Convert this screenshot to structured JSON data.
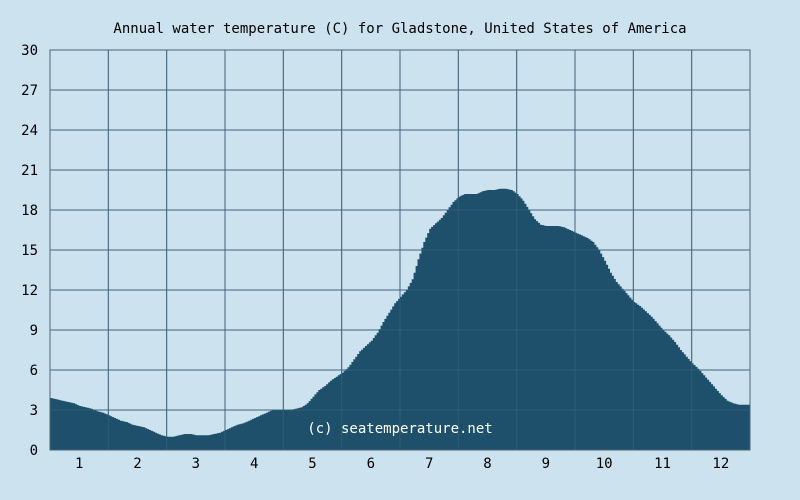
{
  "chart_data": {
    "type": "area",
    "title": "Annual water temperature (C) for Gladstone, United States of America",
    "xlabel": "",
    "ylabel": "",
    "x_ticks": [
      "1",
      "2",
      "3",
      "4",
      "5",
      "6",
      "7",
      "8",
      "9",
      "10",
      "11",
      "12"
    ],
    "xlim": [
      0.5,
      12.5
    ],
    "y_ticks": [
      "0",
      "3",
      "6",
      "9",
      "12",
      "15",
      "18",
      "21",
      "24",
      "27",
      "30"
    ],
    "ylim": [
      0,
      30
    ],
    "grid": true,
    "legend": "none",
    "watermark": "(c) seatemperature.net",
    "colors": {
      "background": "#cce2ee",
      "fill": "#1e506b",
      "grid": "#4b6478"
    },
    "series": [
      {
        "x": [
          0.5,
          0.6,
          0.7,
          0.8,
          0.9,
          1.0,
          1.1,
          1.2,
          1.3,
          1.4,
          1.5,
          1.6,
          1.7,
          1.8,
          1.9,
          2.0,
          2.1,
          2.2,
          2.3,
          2.4,
          2.5,
          2.6,
          2.7,
          2.8,
          2.9,
          3.0,
          3.1,
          3.2,
          3.3,
          3.4,
          3.5,
          3.6,
          3.7,
          3.8,
          3.9,
          4.0,
          4.1,
          4.2,
          4.3,
          4.4,
          4.5,
          4.6,
          4.7,
          4.8,
          4.9,
          5.0,
          5.1,
          5.2,
          5.3,
          5.4,
          5.5,
          5.6,
          5.7,
          5.8,
          5.9,
          6.0,
          6.1,
          6.2,
          6.3,
          6.4,
          6.5,
          6.6,
          6.7,
          6.8,
          6.9,
          7.0,
          7.1,
          7.2,
          7.3,
          7.4,
          7.5,
          7.6,
          7.7,
          7.8,
          7.9,
          8.0,
          8.1,
          8.2,
          8.3,
          8.4,
          8.5,
          8.6,
          8.7,
          8.8,
          8.9,
          9.0,
          9.1,
          9.2,
          9.3,
          9.4,
          9.5,
          9.6,
          9.7,
          9.8,
          9.9,
          10.0,
          10.1,
          10.2,
          10.3,
          10.4,
          10.5,
          10.6,
          10.7,
          10.8,
          10.9,
          11.0,
          11.1,
          11.2,
          11.3,
          11.4,
          11.5,
          11.6,
          11.7,
          11.8,
          11.9,
          12.0,
          12.1,
          12.2,
          12.3,
          12.4,
          12.5
        ],
        "values": [
          3.9,
          3.8,
          3.7,
          3.6,
          3.5,
          3.3,
          3.2,
          3.1,
          2.9,
          2.8,
          2.6,
          2.4,
          2.2,
          2.1,
          1.9,
          1.8,
          1.7,
          1.5,
          1.3,
          1.1,
          1.0,
          1.0,
          1.1,
          1.2,
          1.2,
          1.1,
          1.1,
          1.1,
          1.2,
          1.3,
          1.5,
          1.7,
          1.9,
          2.0,
          2.2,
          2.4,
          2.6,
          2.8,
          3.0,
          3.0,
          3.0,
          3.0,
          3.1,
          3.2,
          3.5,
          4.0,
          4.5,
          4.8,
          5.2,
          5.5,
          5.8,
          6.2,
          6.8,
          7.4,
          7.8,
          8.2,
          8.8,
          9.6,
          10.3,
          11.0,
          11.5,
          12.0,
          12.8,
          14.3,
          15.6,
          16.6,
          17.0,
          17.4,
          18.0,
          18.6,
          19.0,
          19.2,
          19.2,
          19.2,
          19.4,
          19.5,
          19.5,
          19.6,
          19.6,
          19.5,
          19.2,
          18.7,
          18.0,
          17.3,
          16.9,
          16.8,
          16.8,
          16.8,
          16.7,
          16.5,
          16.3,
          16.1,
          15.9,
          15.6,
          15.0,
          14.2,
          13.3,
          12.6,
          12.1,
          11.6,
          11.1,
          10.8,
          10.4,
          10.0,
          9.5,
          9.0,
          8.6,
          8.1,
          7.5,
          7.0,
          6.5,
          6.1,
          5.6,
          5.1,
          4.6,
          4.1,
          3.7,
          3.5,
          3.4,
          3.4,
          3.4
        ]
      }
    ]
  }
}
